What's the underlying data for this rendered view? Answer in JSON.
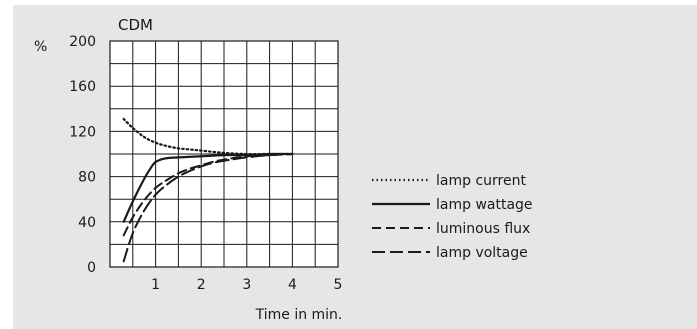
{
  "chart_data": {
    "type": "line",
    "title": "CDM",
    "xlabel": "Time in min.",
    "ylabel": "%",
    "xlim": [
      0,
      5
    ],
    "ylim": [
      0,
      200
    ],
    "x_ticks": [
      1,
      2,
      3,
      4,
      5
    ],
    "y_ticks": [
      0,
      40,
      80,
      120,
      160,
      200
    ],
    "grid": true,
    "legend_position": "right",
    "series": [
      {
        "name": "lamp current",
        "style": "dotted",
        "x": [
          0.3,
          0.5,
          0.75,
          1.0,
          1.25,
          1.5,
          1.75,
          2.0,
          2.5,
          3.0,
          3.5,
          4.0
        ],
        "y": [
          131,
          123,
          115,
          110,
          107,
          105,
          104,
          103,
          101,
          100,
          100,
          100
        ]
      },
      {
        "name": "lamp wattage",
        "style": "solid",
        "x": [
          0.3,
          0.5,
          0.75,
          0.9,
          1.0,
          1.2,
          1.5,
          2.0,
          2.5,
          3.0,
          3.5,
          4.0
        ],
        "y": [
          40,
          58,
          78,
          88,
          93,
          96,
          97,
          98,
          99,
          99,
          100,
          100
        ]
      },
      {
        "name": "luminous flux",
        "style": "dashed",
        "x": [
          0.3,
          0.5,
          0.75,
          1.0,
          1.25,
          1.5,
          1.75,
          2.0,
          2.25,
          2.5,
          3.0,
          3.5,
          4.0
        ],
        "y": [
          28,
          44,
          59,
          70,
          77,
          83,
          87,
          90,
          93,
          95,
          98,
          99,
          100
        ]
      },
      {
        "name": "lamp voltage",
        "style": "longdash",
        "x": [
          0.3,
          0.5,
          0.75,
          1.0,
          1.25,
          1.5,
          1.75,
          2.0,
          2.25,
          2.5,
          3.0,
          3.5,
          4.0
        ],
        "y": [
          5,
          30,
          50,
          64,
          73,
          80,
          85,
          89,
          92,
          94,
          97,
          99,
          100
        ]
      }
    ]
  }
}
